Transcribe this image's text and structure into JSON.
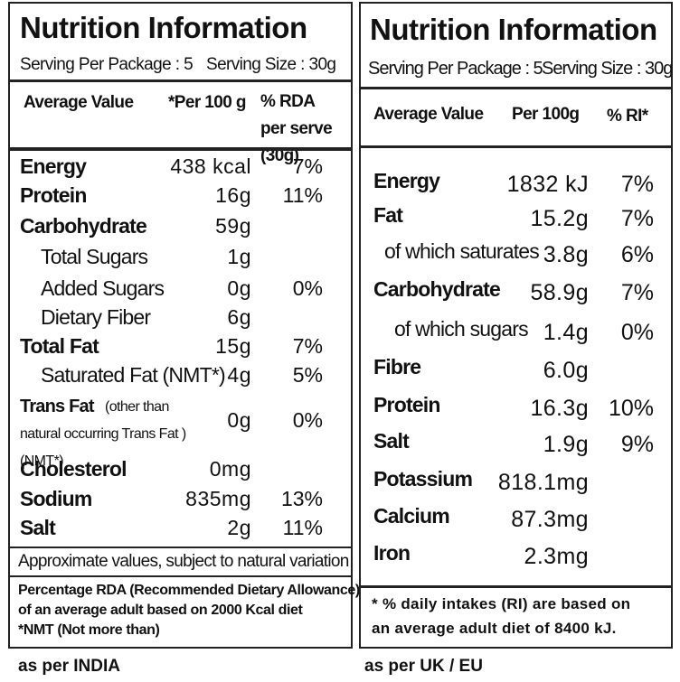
{
  "india": {
    "title": "Nutrition Information",
    "serving_per_package": "Serving Per Package : 5",
    "serving_size": "Serving Size : 30g",
    "header": [
      "Average Value",
      "*Per 100 g",
      "% RDA per serve (30g)"
    ],
    "rows": [
      {
        "name": "Energy",
        "per_100g": "438 kcal",
        "rda": "7%",
        "bold": true
      },
      {
        "name": "Protein",
        "per_100g": "16g",
        "rda": "11%",
        "bold": true
      },
      {
        "name": "Carbohydrate",
        "per_100g": "59g",
        "bold": true
      },
      {
        "name": "Total Sugars",
        "per_100g": "1g"
      },
      {
        "name": "Added Sugars",
        "per_100g": "0g",
        "rda": "0%"
      },
      {
        "name": "Dietary Fiber",
        "per_100g": "6g"
      },
      {
        "name": "Total Fat",
        "per_100g": "15g",
        "rda": "7%",
        "bold": true
      },
      {
        "name": "Saturated Fat (NMT*)",
        "per_100g": "4g",
        "rda": "5%"
      },
      {
        "name": "Trans Fat",
        "name_note": "(other than natural occurring Trans Fat )(NMT*)",
        "per_100g": "0g",
        "rda": "0%",
        "bold": true
      },
      {
        "name": "Cholesterol",
        "per_100g": "0mg",
        "bold": true
      },
      {
        "name": "Sodium",
        "per_100g": "835mg",
        "rda": "13%",
        "bold": true
      },
      {
        "name": "Salt",
        "per_100g": "2g",
        "rda": "11%",
        "bold": true
      }
    ],
    "note": "Approximate values, subject to natural variation",
    "footnote": [
      "Percentage RDA (Recommended Dietary Allowance)",
      "of an average adult based on 2000 Kcal diet",
      "*NMT (Not more than)"
    ],
    "caption": "as per INDIA"
  },
  "uk_eu": {
    "title": "Nutrition Information",
    "serving_per_package": "Serving Per Package : 5",
    "serving_size": "Serving Size : 30g",
    "header": [
      "Average Value",
      "Per 100g",
      "% RI*"
    ],
    "rows": [
      {
        "name": "Energy",
        "per_100g": "1832 kJ",
        "ri": "7%",
        "bold": true
      },
      {
        "name": "Fat",
        "per_100g": "15.2g",
        "ri": "7%",
        "bold": true
      },
      {
        "name": "of which saturates",
        "per_100g": "3.8g",
        "ri": "6%"
      },
      {
        "name": "Carbohydrate",
        "per_100g": "58.9g",
        "ri": "7%",
        "bold": true
      },
      {
        "name": "of which sugars",
        "per_100g": "1.4g",
        "ri": "0%"
      },
      {
        "name": "Fibre",
        "per_100g": "6.0g",
        "bold": true
      },
      {
        "name": "Protein",
        "per_100g": "16.3g",
        "ri": "10%",
        "bold": true
      },
      {
        "name": "Salt",
        "per_100g": "1.9g",
        "ri": "9%",
        "bold": true
      },
      {
        "name": "Potassium",
        "per_100g": "818.1mg",
        "bold": true
      },
      {
        "name": "Calcium",
        "per_100g": "87.3mg",
        "bold": true
      },
      {
        "name": "Iron",
        "per_100g": "2.3mg",
        "bold": true
      }
    ],
    "footnote": [
      "* % daily intakes (RI) are based on",
      "an average adult diet of 8400 kJ."
    ],
    "caption": "as per UK / EU"
  }
}
